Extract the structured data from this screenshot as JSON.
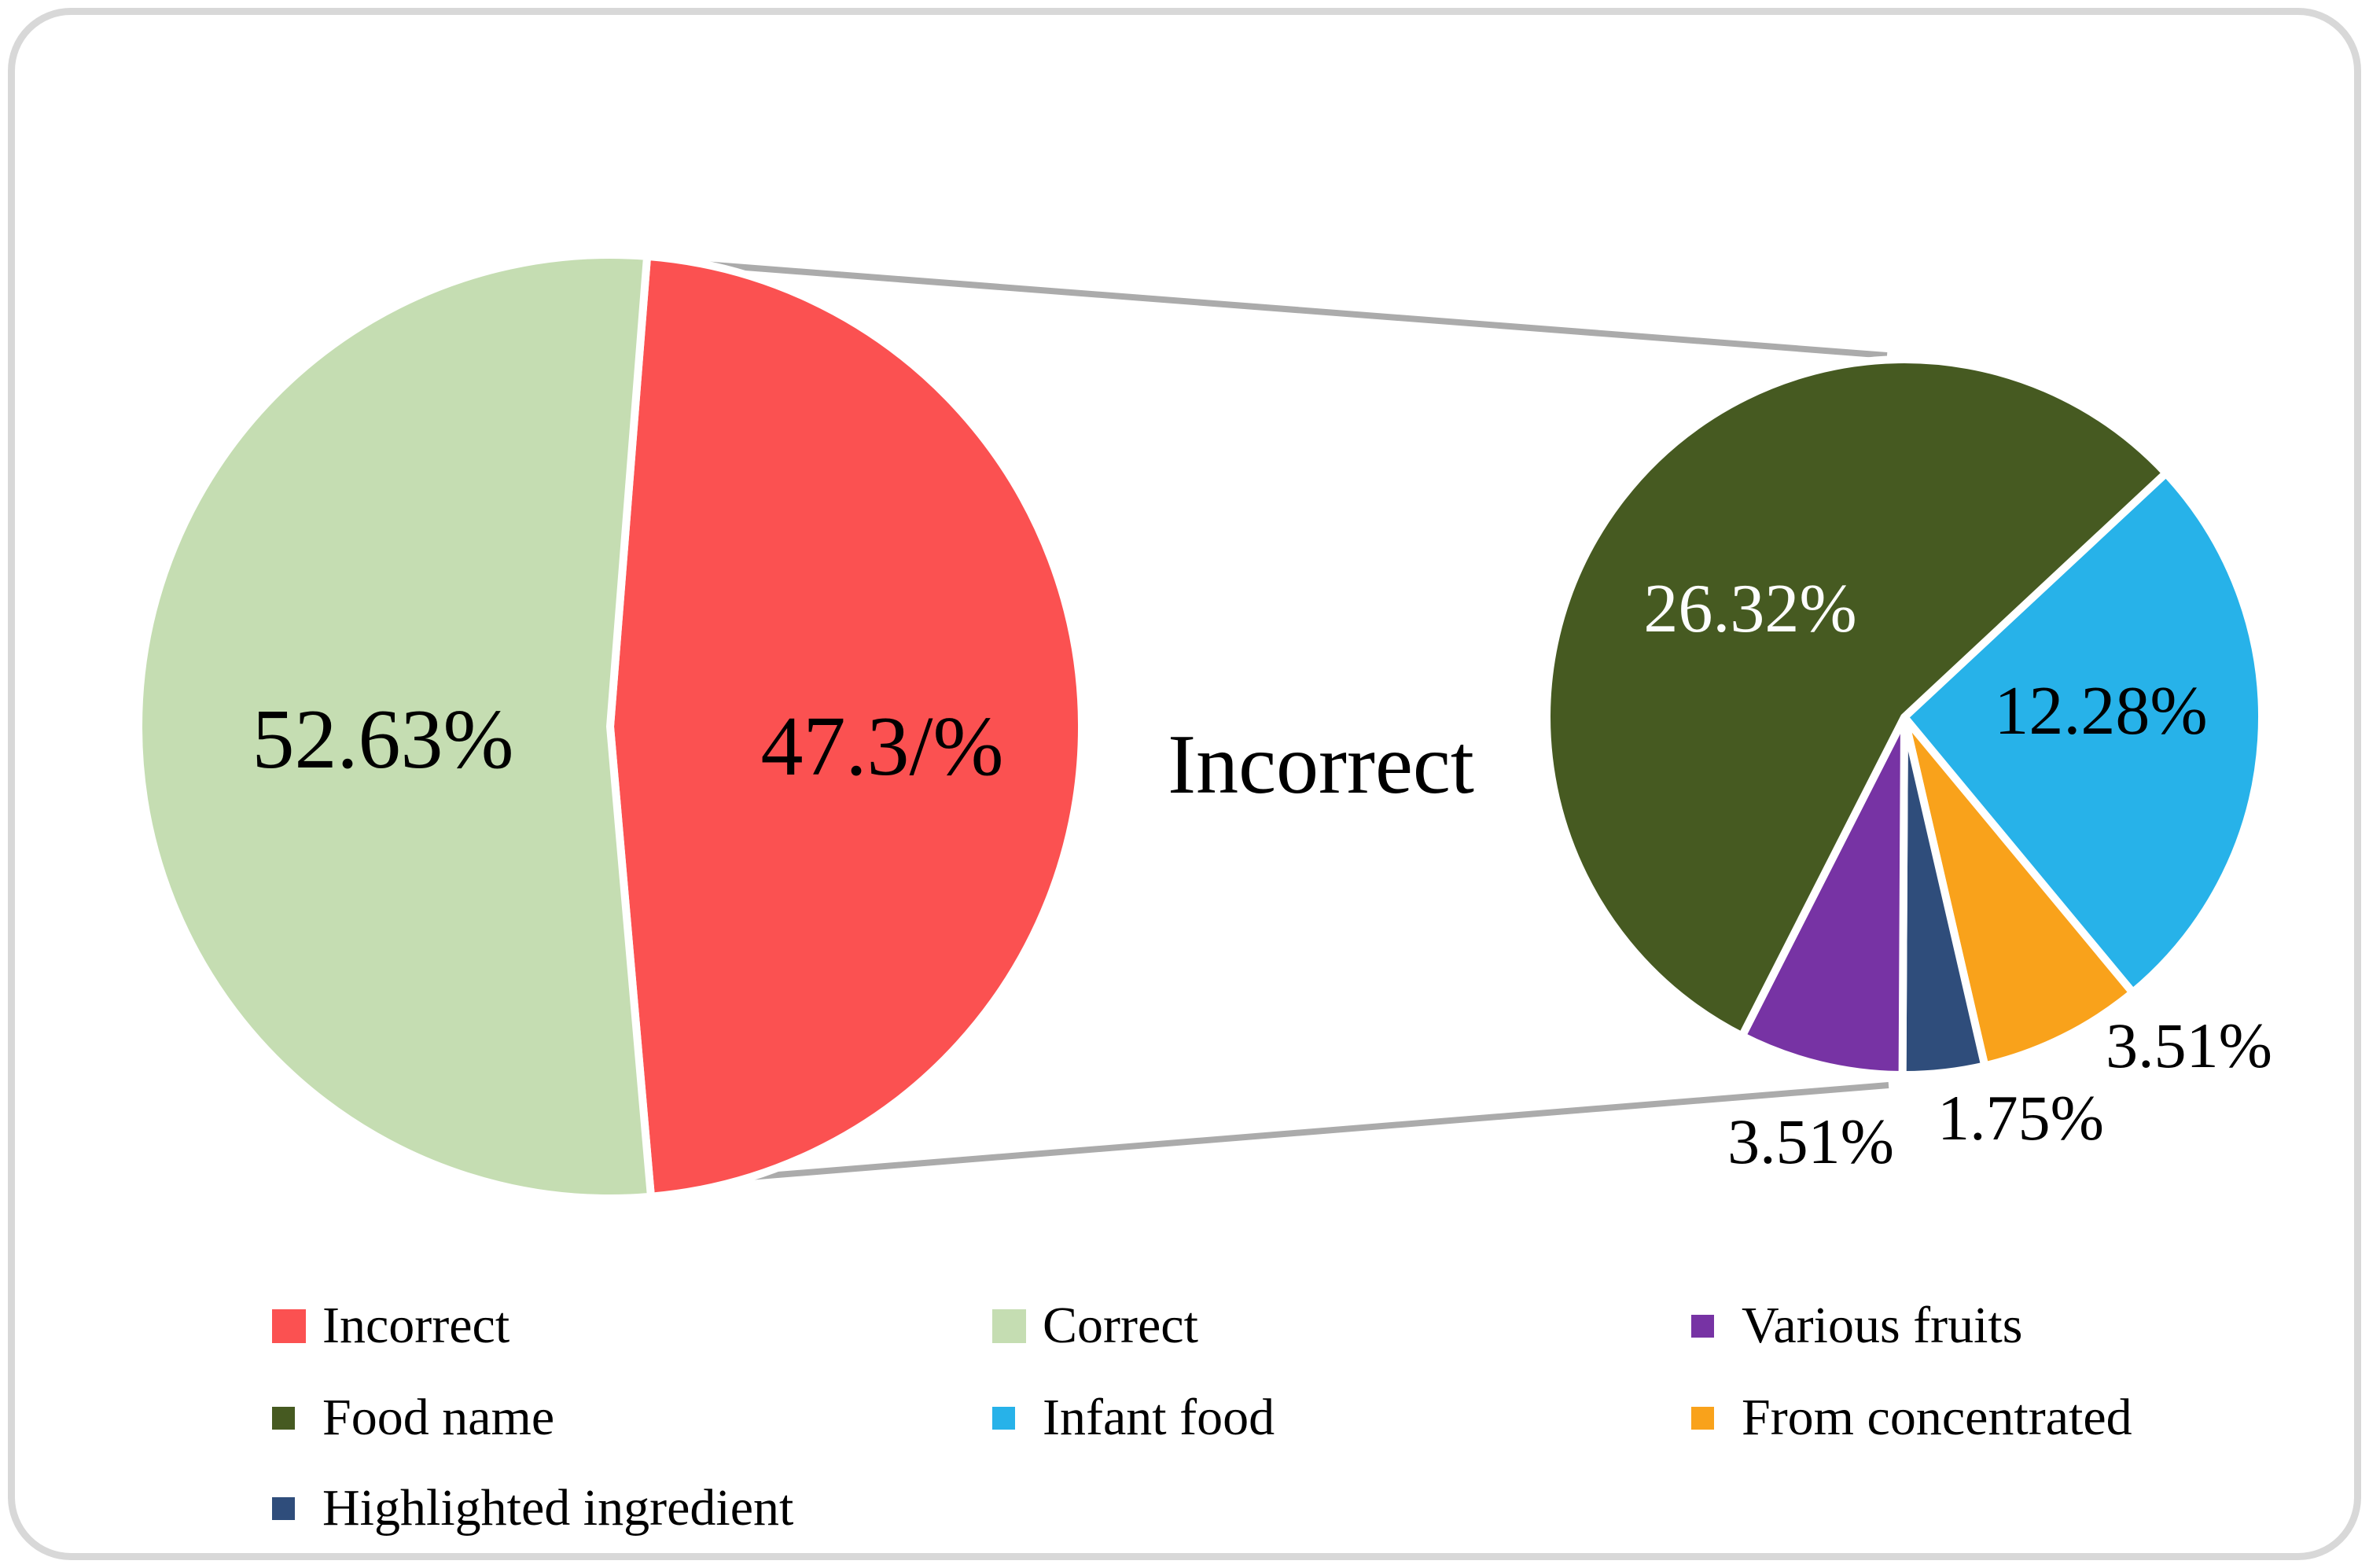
{
  "figure": {
    "type_note": "pie-of-pie breakdown figure"
  },
  "chart_data": {
    "type": "pie",
    "subtype": "pie-of-pie",
    "title": "",
    "legend_position": "bottom",
    "main": {
      "slices": [
        {
          "label": "Incorrect",
          "value": 47.37,
          "display": "47.3/%",
          "color": "#FB5151"
        },
        {
          "label": "Correct",
          "value": 52.63,
          "display": "52.63%",
          "color": "#C5DDB2"
        }
      ]
    },
    "breakdown": {
      "parent_slice": "Incorrect",
      "slices": [
        {
          "label": "Infant food",
          "value": 12.28,
          "display": "12.28%",
          "color": "#27B2E9"
        },
        {
          "label": "From concentrated",
          "value": 3.51,
          "display": "3.51%",
          "color": "#F9A21B"
        },
        {
          "label": "Highlighted ingredient",
          "value": 1.75,
          "display": "1.75%",
          "color": "#2F4D7B"
        },
        {
          "label": "Various fruits",
          "value": 3.51,
          "display": "3.51%",
          "color": "#7733A4"
        },
        {
          "label": "Food name",
          "value": 26.32,
          "display": "26.32%",
          "color": "#465A21"
        }
      ]
    },
    "connector_color": "#ABABAB",
    "border_color": "#D8D8D8"
  },
  "labels": {
    "main_correct_pct": "52.63%",
    "main_incorrect_pct": "47.3/%",
    "callout_incorrect": "Incorrect",
    "sub_food_name_pct": "26.32%",
    "sub_infant_food_pct": "12.28%",
    "sub_from_concentrated_pct": "3.51%",
    "sub_highlighted_ingredient_pct": "1.75%",
    "sub_various_fruits_pct": "3.51%"
  },
  "legend": {
    "items": [
      {
        "label": "Incorrect",
        "color": "#FB5151",
        "swatch": "large"
      },
      {
        "label": "Correct",
        "color": "#C5DDB2",
        "swatch": "large"
      },
      {
        "label": "Various fruits",
        "color": "#7733A4",
        "swatch": "small"
      },
      {
        "label": "Food name",
        "color": "#465A21",
        "swatch": "small"
      },
      {
        "label": "Infant food",
        "color": "#27B2E9",
        "swatch": "small"
      },
      {
        "label": "From concentrated",
        "color": "#F9A21B",
        "swatch": "small"
      },
      {
        "label": "Highlighted ingredient",
        "color": "#2F4D7B",
        "swatch": "small"
      }
    ]
  }
}
